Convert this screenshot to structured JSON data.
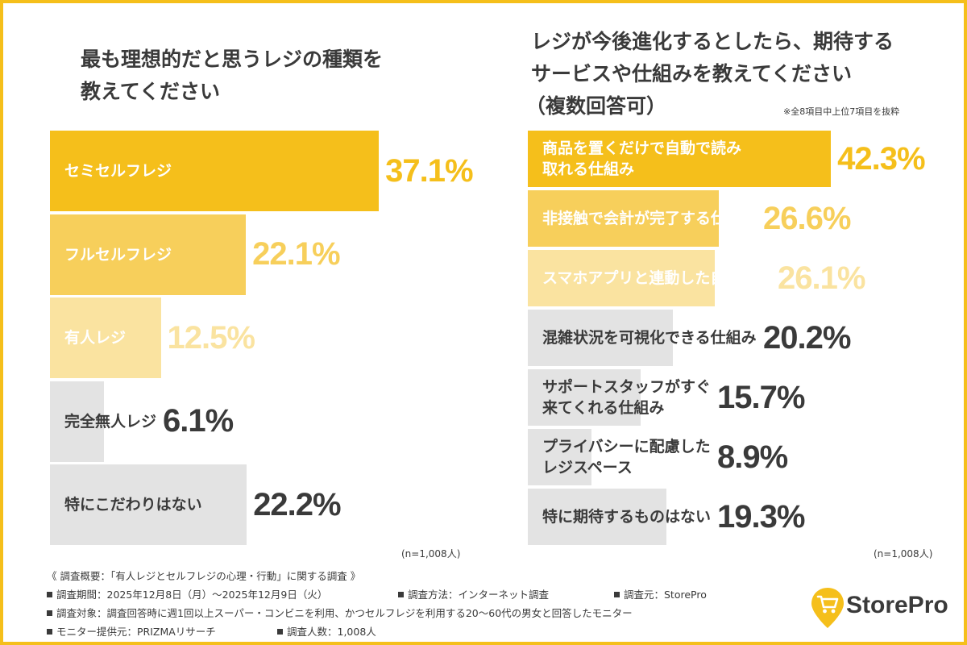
{
  "colors": {
    "frame": "#f5bf1b",
    "levels": [
      "#f5bf1b",
      "#f7cf5b",
      "#fae3a0",
      "#e3e3e3"
    ],
    "label_text": [
      "#ffffff",
      "#ffffff",
      "#ffffff",
      "#3a3a3a"
    ],
    "value_text": [
      "#f5bf1b",
      "#f7cf5b",
      "#fae3a0",
      "#3a3a3a"
    ]
  },
  "chart_data": [
    {
      "type": "bar",
      "orientation": "horizontal",
      "title_lines": [
        "最も理想的だと思うレジの種類を",
        "教えてください"
      ],
      "n_label": "(n=1,008人)",
      "unit": "%",
      "xlim": [
        0,
        40
      ],
      "categories": [
        "セミセルフレジ",
        "フルセルフレジ",
        "有人レジ",
        "完全無人レジ",
        "特にこだわりはない"
      ],
      "values": [
        37.1,
        22.1,
        12.5,
        6.1,
        22.2
      ],
      "value_labels": [
        "37.1%",
        "22.1%",
        "12.5%",
        "6.1%",
        "22.2%"
      ],
      "color_levels": [
        0,
        1,
        2,
        3,
        3
      ]
    },
    {
      "type": "bar",
      "orientation": "horizontal",
      "title_lines": [
        "レジが今後進化するとしたら、期待する",
        "サービスや仕組みを教えてください",
        "（複数回答可）"
      ],
      "note": "※全8項目中上位7項目を抜粋",
      "n_label": "(n=1,008人)",
      "unit": "%",
      "xlim": [
        0,
        46
      ],
      "categories": [
        [
          "商品を置くだけで自動で読み",
          "取れる仕組み"
        ],
        [
          "非接触で会計が完了する仕組み"
        ],
        [
          "スマホアプリと連動した自動決済"
        ],
        [
          "混雑状況を可視化できる仕組み"
        ],
        [
          "サポートスタッフがすぐ",
          "来てくれる仕組み"
        ],
        [
          "プライバシーに配慮した",
          "レジスペース"
        ],
        [
          "特に期待するものはない"
        ]
      ],
      "values": [
        42.3,
        26.6,
        26.1,
        20.2,
        15.7,
        8.9,
        19.3
      ],
      "value_labels": [
        "42.3%",
        "26.6%",
        "26.1%",
        "20.2%",
        "15.7%",
        "8.9%",
        "19.3%"
      ],
      "color_levels": [
        0,
        1,
        2,
        3,
        3,
        3,
        3
      ]
    }
  ],
  "footer": {
    "heading": "《 調査概要：「有人レジとセルフレジの心理・行動」に関する調査 》",
    "period": "調査期間：2025年12月8日（月）～2025年12月9日（火）",
    "method": "調査方法：インターネット調査",
    "source": "調査元：StorePro",
    "target": "調査対象：調査回答時に週1回以上スーパー・コンビニを利用、かつセルフレジを利用する20〜60代の男女と回答したモニター",
    "provider": "モニター提供元：PRIZMAリサーチ",
    "count": "調査人数：1,008人"
  },
  "logo": {
    "text": "StorePro",
    "icon": "shopping-cart-pin-icon"
  }
}
